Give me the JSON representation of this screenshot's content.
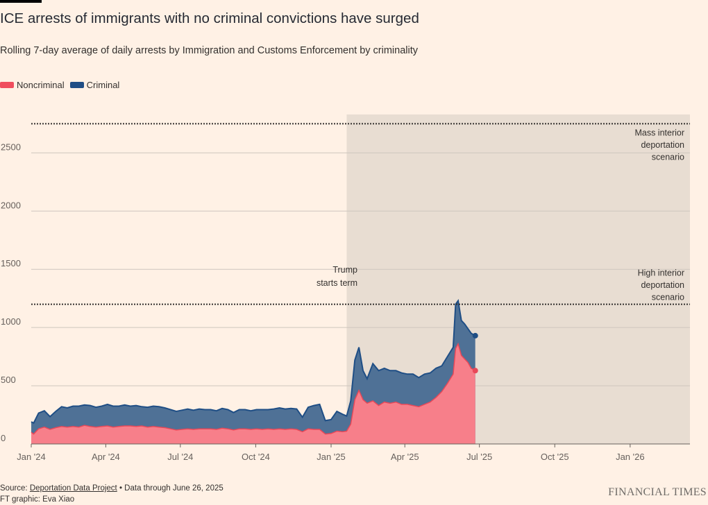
{
  "title": "ICE arrests of immigrants with no criminal convictions have surged",
  "subtitle": "Rolling 7-day average of daily arrests by Immigration and Customs Enforcement by criminality",
  "legend": [
    {
      "label": "Noncriminal",
      "color": "#F04E5E"
    },
    {
      "label": "Criminal",
      "color": "#1F4E85"
    }
  ],
  "source": {
    "prefix": "Source: ",
    "link": "Deportation Data Project",
    "suffix": " • Data through June 26, 2025",
    "credit": "FT graphic: Eva Xiao"
  },
  "brand": "FINANCIAL TIMES",
  "chart_data": {
    "type": "area",
    "stacked": true,
    "ylim": [
      0,
      2830
    ],
    "y_ticks": [
      0,
      500,
      1000,
      1500,
      2000,
      2500
    ],
    "x_ticks": [
      {
        "label": "Jan '24",
        "date": "2024-01-01"
      },
      {
        "label": "Apr '24",
        "date": "2024-04-01"
      },
      {
        "label": "Jul '24",
        "date": "2024-07-01"
      },
      {
        "label": "Oct '24",
        "date": "2024-10-01"
      },
      {
        "label": "Jan '25",
        "date": "2025-01-01"
      },
      {
        "label": "Apr '25",
        "date": "2025-04-01"
      },
      {
        "label": "Jul '25",
        "date": "2025-07-01"
      },
      {
        "label": "Oct '25",
        "date": "2025-10-01"
      },
      {
        "label": "Jan '26",
        "date": "2026-01-01"
      }
    ],
    "xlim": [
      "2024-01-01",
      "2026-03-15"
    ],
    "shaded_region": {
      "start": "2025-01-20",
      "end": "2026-03-15",
      "label": [
        "Trump",
        "starts term"
      ]
    },
    "reference_lines": [
      {
        "value": 2750,
        "label": [
          "Mass interior",
          "deportation",
          "scenario"
        ]
      },
      {
        "value": 1200,
        "label": [
          "High interior",
          "deportation",
          "scenario"
        ]
      }
    ],
    "series": [
      {
        "name": "Noncriminal",
        "color": "#F77F8A",
        "line_color": "#E84858",
        "points": [
          [
            "2024-01-01",
            100
          ],
          [
            "2024-01-04",
            85
          ],
          [
            "2024-01-10",
            130
          ],
          [
            "2024-01-17",
            145
          ],
          [
            "2024-01-24",
            125
          ],
          [
            "2024-01-31",
            140
          ],
          [
            "2024-02-07",
            150
          ],
          [
            "2024-02-14",
            145
          ],
          [
            "2024-02-21",
            150
          ],
          [
            "2024-02-28",
            145
          ],
          [
            "2024-03-06",
            160
          ],
          [
            "2024-03-13",
            150
          ],
          [
            "2024-03-20",
            145
          ],
          [
            "2024-03-27",
            150
          ],
          [
            "2024-04-03",
            155
          ],
          [
            "2024-04-10",
            145
          ],
          [
            "2024-04-17",
            150
          ],
          [
            "2024-04-24",
            155
          ],
          [
            "2024-05-01",
            155
          ],
          [
            "2024-05-08",
            150
          ],
          [
            "2024-05-15",
            155
          ],
          [
            "2024-05-22",
            145
          ],
          [
            "2024-05-29",
            150
          ],
          [
            "2024-06-05",
            145
          ],
          [
            "2024-06-12",
            140
          ],
          [
            "2024-06-19",
            130
          ],
          [
            "2024-06-26",
            120
          ],
          [
            "2024-07-03",
            125
          ],
          [
            "2024-07-10",
            130
          ],
          [
            "2024-07-17",
            125
          ],
          [
            "2024-07-24",
            130
          ],
          [
            "2024-07-31",
            130
          ],
          [
            "2024-08-07",
            130
          ],
          [
            "2024-08-14",
            125
          ],
          [
            "2024-08-21",
            135
          ],
          [
            "2024-08-28",
            130
          ],
          [
            "2024-09-04",
            120
          ],
          [
            "2024-09-11",
            130
          ],
          [
            "2024-09-18",
            130
          ],
          [
            "2024-09-25",
            125
          ],
          [
            "2024-10-02",
            130
          ],
          [
            "2024-10-09",
            125
          ],
          [
            "2024-10-16",
            130
          ],
          [
            "2024-10-23",
            125
          ],
          [
            "2024-10-30",
            130
          ],
          [
            "2024-11-06",
            125
          ],
          [
            "2024-11-13",
            130
          ],
          [
            "2024-11-20",
            125
          ],
          [
            "2024-11-27",
            105
          ],
          [
            "2024-12-04",
            130
          ],
          [
            "2024-12-11",
            125
          ],
          [
            "2024-12-18",
            125
          ],
          [
            "2024-12-25",
            85
          ],
          [
            "2025-01-01",
            90
          ],
          [
            "2025-01-08",
            110
          ],
          [
            "2025-01-15",
            105
          ],
          [
            "2025-01-20",
            110
          ],
          [
            "2025-01-25",
            170
          ],
          [
            "2025-01-30",
            380
          ],
          [
            "2025-02-04",
            460
          ],
          [
            "2025-02-09",
            380
          ],
          [
            "2025-02-14",
            350
          ],
          [
            "2025-02-21",
            370
          ],
          [
            "2025-02-28",
            330
          ],
          [
            "2025-03-07",
            360
          ],
          [
            "2025-03-14",
            350
          ],
          [
            "2025-03-21",
            360
          ],
          [
            "2025-03-28",
            340
          ],
          [
            "2025-04-04",
            340
          ],
          [
            "2025-04-11",
            330
          ],
          [
            "2025-04-18",
            320
          ],
          [
            "2025-04-25",
            340
          ],
          [
            "2025-05-02",
            360
          ],
          [
            "2025-05-09",
            400
          ],
          [
            "2025-05-16",
            450
          ],
          [
            "2025-05-23",
            520
          ],
          [
            "2025-05-30",
            600
          ],
          [
            "2025-06-02",
            820
          ],
          [
            "2025-06-05",
            860
          ],
          [
            "2025-06-09",
            760
          ],
          [
            "2025-06-13",
            730
          ],
          [
            "2025-06-17",
            700
          ],
          [
            "2025-06-21",
            650
          ],
          [
            "2025-06-26",
            630
          ]
        ]
      },
      {
        "name": "Criminal",
        "color": "#4F7196",
        "line_color": "#1F4E85",
        "points": [
          [
            "2024-01-01",
            90
          ],
          [
            "2024-01-04",
            95
          ],
          [
            "2024-01-10",
            135
          ],
          [
            "2024-01-17",
            140
          ],
          [
            "2024-01-24",
            110
          ],
          [
            "2024-01-31",
            140
          ],
          [
            "2024-02-07",
            170
          ],
          [
            "2024-02-14",
            165
          ],
          [
            "2024-02-21",
            175
          ],
          [
            "2024-02-28",
            180
          ],
          [
            "2024-03-06",
            175
          ],
          [
            "2024-03-13",
            180
          ],
          [
            "2024-03-20",
            170
          ],
          [
            "2024-03-27",
            175
          ],
          [
            "2024-04-03",
            185
          ],
          [
            "2024-04-10",
            180
          ],
          [
            "2024-04-17",
            175
          ],
          [
            "2024-04-24",
            180
          ],
          [
            "2024-05-01",
            170
          ],
          [
            "2024-05-08",
            180
          ],
          [
            "2024-05-15",
            165
          ],
          [
            "2024-05-22",
            170
          ],
          [
            "2024-05-29",
            175
          ],
          [
            "2024-06-05",
            175
          ],
          [
            "2024-06-12",
            170
          ],
          [
            "2024-06-19",
            165
          ],
          [
            "2024-06-26",
            160
          ],
          [
            "2024-07-03",
            165
          ],
          [
            "2024-07-10",
            170
          ],
          [
            "2024-07-17",
            165
          ],
          [
            "2024-07-24",
            170
          ],
          [
            "2024-07-31",
            165
          ],
          [
            "2024-08-07",
            165
          ],
          [
            "2024-08-14",
            160
          ],
          [
            "2024-08-21",
            170
          ],
          [
            "2024-08-28",
            165
          ],
          [
            "2024-09-04",
            150
          ],
          [
            "2024-09-11",
            165
          ],
          [
            "2024-09-18",
            165
          ],
          [
            "2024-09-25",
            160
          ],
          [
            "2024-10-02",
            165
          ],
          [
            "2024-10-09",
            170
          ],
          [
            "2024-10-16",
            165
          ],
          [
            "2024-10-23",
            175
          ],
          [
            "2024-10-30",
            180
          ],
          [
            "2024-11-06",
            175
          ],
          [
            "2024-11-13",
            175
          ],
          [
            "2024-11-20",
            175
          ],
          [
            "2024-11-27",
            125
          ],
          [
            "2024-12-04",
            185
          ],
          [
            "2024-12-11",
            205
          ],
          [
            "2024-12-18",
            215
          ],
          [
            "2024-12-25",
            115
          ],
          [
            "2025-01-01",
            120
          ],
          [
            "2025-01-08",
            170
          ],
          [
            "2025-01-15",
            150
          ],
          [
            "2025-01-20",
            130
          ],
          [
            "2025-01-25",
            200
          ],
          [
            "2025-01-30",
            340
          ],
          [
            "2025-02-04",
            370
          ],
          [
            "2025-02-09",
            250
          ],
          [
            "2025-02-14",
            210
          ],
          [
            "2025-02-21",
            320
          ],
          [
            "2025-02-28",
            300
          ],
          [
            "2025-03-07",
            290
          ],
          [
            "2025-03-14",
            280
          ],
          [
            "2025-03-21",
            270
          ],
          [
            "2025-03-28",
            270
          ],
          [
            "2025-04-04",
            260
          ],
          [
            "2025-04-11",
            270
          ],
          [
            "2025-04-18",
            250
          ],
          [
            "2025-04-25",
            260
          ],
          [
            "2025-05-02",
            250
          ],
          [
            "2025-05-09",
            250
          ],
          [
            "2025-05-16",
            220
          ],
          [
            "2025-05-23",
            230
          ],
          [
            "2025-05-30",
            230
          ],
          [
            "2025-06-02",
            380
          ],
          [
            "2025-06-05",
            370
          ],
          [
            "2025-06-09",
            300
          ],
          [
            "2025-06-13",
            300
          ],
          [
            "2025-06-17",
            290
          ],
          [
            "2025-06-21",
            300
          ],
          [
            "2025-06-26",
            300
          ]
        ]
      }
    ]
  }
}
